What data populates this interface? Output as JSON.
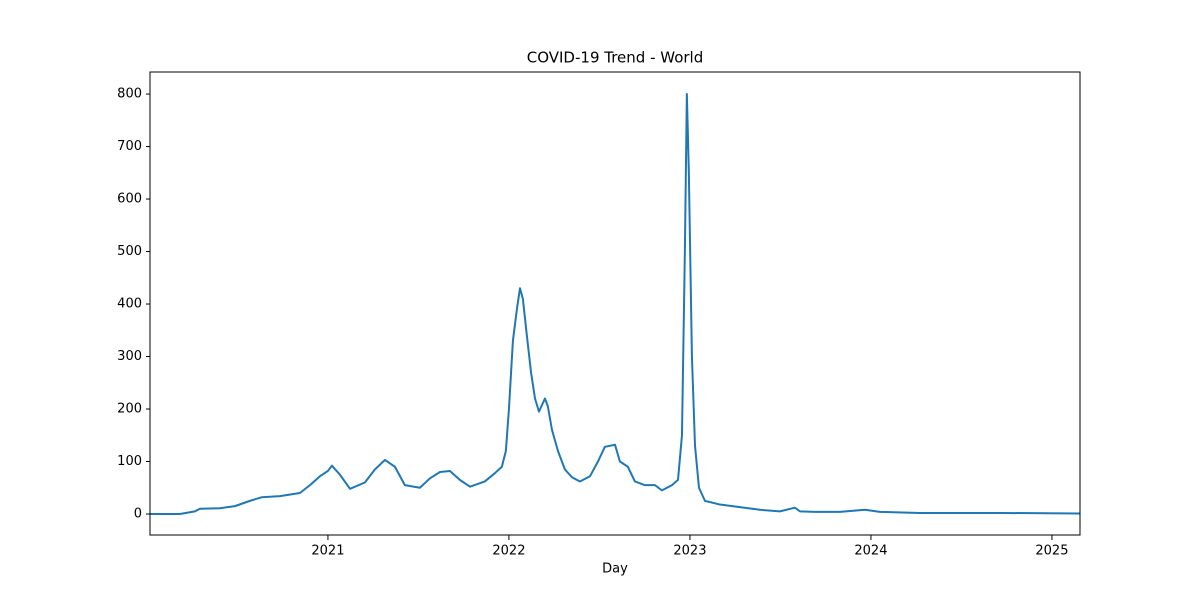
{
  "chart_data": {
    "type": "line",
    "title": "COVID-19 Trend - World",
    "xlabel": "Day",
    "x": [
      2020.017,
      2020.182,
      2020.265,
      2020.293,
      2020.403,
      2020.486,
      2020.569,
      2020.635,
      2020.735,
      2020.845,
      2020.901,
      2020.956,
      2021.0,
      2021.022,
      2021.066,
      2021.122,
      2021.204,
      2021.26,
      2021.315,
      2021.37,
      2021.425,
      2021.508,
      2021.564,
      2021.619,
      2021.674,
      2021.729,
      2021.785,
      2021.867,
      2021.923,
      2021.961,
      2021.983,
      2022.0,
      2022.022,
      2022.044,
      2022.061,
      2022.077,
      2022.099,
      2022.122,
      2022.144,
      2022.166,
      2022.199,
      2022.215,
      2022.238,
      2022.271,
      2022.309,
      2022.348,
      2022.392,
      2022.448,
      2022.492,
      2022.53,
      2022.586,
      2022.613,
      2022.657,
      2022.696,
      2022.751,
      2022.807,
      2022.845,
      2022.901,
      2022.934,
      2022.956,
      2022.972,
      2022.983,
      2022.994,
      2023.011,
      2023.028,
      2023.05,
      2023.083,
      2023.166,
      2023.276,
      2023.387,
      2023.497,
      2023.58,
      2023.608,
      2023.691,
      2023.829,
      2023.967,
      2024.05,
      2024.271,
      2024.713,
      2025.155
    ],
    "series": [
      {
        "name": "World",
        "color": "#1f77b4",
        "values": [
          0,
          0,
          5,
          10,
          11,
          15,
          25,
          32,
          34,
          40,
          55,
          72,
          82,
          92,
          75,
          48,
          60,
          85,
          103,
          90,
          55,
          50,
          68,
          80,
          82,
          65,
          52,
          62,
          78,
          90,
          120,
          200,
          330,
          390,
          430,
          410,
          340,
          270,
          220,
          195,
          220,
          205,
          160,
          120,
          85,
          70,
          62,
          72,
          100,
          128,
          132,
          100,
          90,
          62,
          55,
          55,
          45,
          55,
          65,
          150,
          500,
          800,
          650,
          300,
          130,
          50,
          25,
          18,
          13,
          8,
          5,
          12,
          5,
          4,
          4,
          8,
          4,
          2,
          2,
          1
        ]
      }
    ],
    "xlim": [
      2020.017,
      2025.155
    ],
    "xticks": [
      2021,
      2022,
      2023,
      2024,
      2025
    ],
    "ylim": [
      -40,
      842
    ],
    "yticks": [
      0,
      100,
      200,
      300,
      400,
      500,
      600,
      700,
      800
    ]
  }
}
